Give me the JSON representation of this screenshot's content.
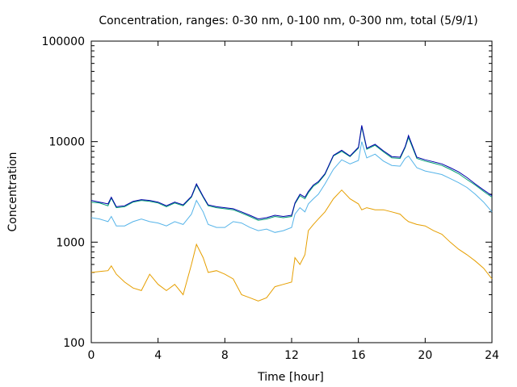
{
  "chart_data": {
    "type": "line",
    "title": "Concentration, ranges: 0-30 nm, 0-100 nm, 0-300 nm, total (5/9/1)",
    "xlabel": "Time [hour]",
    "ylabel": "Concentration",
    "xlim": [
      0,
      24
    ],
    "ylim": [
      100,
      100000
    ],
    "yscale": "log",
    "grid": false,
    "legend": "none",
    "x_ticks": [
      0,
      4,
      8,
      12,
      16,
      20,
      24
    ],
    "x_tick_labels": [
      "0",
      "4",
      "8",
      "12",
      "16",
      "20",
      "24"
    ],
    "y_ticks": [
      100,
      1000,
      10000,
      100000
    ],
    "y_tick_labels": [
      "100",
      "1000",
      "10000",
      "100000"
    ],
    "x": [
      0,
      0.5,
      1,
      1.2,
      1.5,
      2,
      2.5,
      3,
      3.5,
      4,
      4.5,
      5,
      5.5,
      6,
      6.3,
      6.7,
      7,
      7.5,
      8,
      8.5,
      9,
      9.5,
      10,
      10.5,
      11,
      11.5,
      12,
      12.2,
      12.5,
      12.8,
      13,
      13.3,
      13.6,
      14,
      14.5,
      15,
      15.5,
      16,
      16.2,
      16.5,
      17,
      17.5,
      18,
      18.5,
      18.8,
      19,
      19.5,
      20,
      20.5,
      21,
      21.5,
      22,
      22.5,
      23,
      23.5,
      24
    ],
    "series": [
      {
        "color": "#e69f00",
        "values": [
          500,
          510,
          520,
          580,
          480,
          400,
          350,
          330,
          480,
          380,
          330,
          380,
          300,
          600,
          950,
          700,
          500,
          520,
          480,
          430,
          300,
          280,
          260,
          280,
          360,
          380,
          400,
          700,
          600,
          750,
          1300,
          1500,
          1700,
          2000,
          2700,
          3300,
          2700,
          2400,
          2100,
          2200,
          2100,
          2100,
          2000,
          1900,
          1700,
          1600,
          1500,
          1450,
          1300,
          1200,
          1000,
          850,
          750,
          650,
          550,
          430
        ]
      },
      {
        "color": "#56b4e9",
        "values": [
          1750,
          1700,
          1600,
          1800,
          1450,
          1450,
          1600,
          1700,
          1600,
          1550,
          1450,
          1600,
          1500,
          1900,
          2600,
          2000,
          1500,
          1400,
          1400,
          1600,
          1550,
          1400,
          1300,
          1350,
          1250,
          1300,
          1400,
          1900,
          2200,
          2000,
          2400,
          2700,
          3000,
          3800,
          5300,
          6600,
          6000,
          6500,
          10000,
          6900,
          7500,
          6400,
          5800,
          5700,
          6800,
          7200,
          5500,
          5100,
          4900,
          4700,
          4300,
          3900,
          3500,
          3000,
          2500,
          2000
        ]
      },
      {
        "color": "#009e73",
        "values": [
          2500,
          2450,
          2300,
          2750,
          2200,
          2250,
          2500,
          2600,
          2550,
          2450,
          2250,
          2450,
          2300,
          2800,
          3700,
          2800,
          2300,
          2200,
          2150,
          2100,
          1950,
          1800,
          1650,
          1700,
          1800,
          1750,
          1800,
          2400,
          2900,
          2700,
          3100,
          3600,
          3900,
          4700,
          7200,
          8000,
          7100,
          8600,
          14000,
          8400,
          9200,
          7900,
          6900,
          6800,
          8700,
          11000,
          6800,
          6400,
          6100,
          5800,
          5300,
          4800,
          4200,
          3700,
          3200,
          2800
        ]
      },
      {
        "color": "#0000aa",
        "values": [
          2600,
          2500,
          2400,
          2800,
          2250,
          2300,
          2550,
          2650,
          2600,
          2500,
          2300,
          2500,
          2350,
          2850,
          3800,
          2850,
          2350,
          2250,
          2200,
          2150,
          2000,
          1850,
          1700,
          1750,
          1850,
          1800,
          1850,
          2450,
          3000,
          2800,
          3200,
          3700,
          4000,
          4800,
          7300,
          8200,
          7200,
          8800,
          14500,
          8600,
          9400,
          8100,
          7100,
          7000,
          8900,
          11500,
          7000,
          6600,
          6300,
          6000,
          5500,
          5000,
          4400,
          3800,
          3300,
          2900
        ]
      }
    ]
  }
}
